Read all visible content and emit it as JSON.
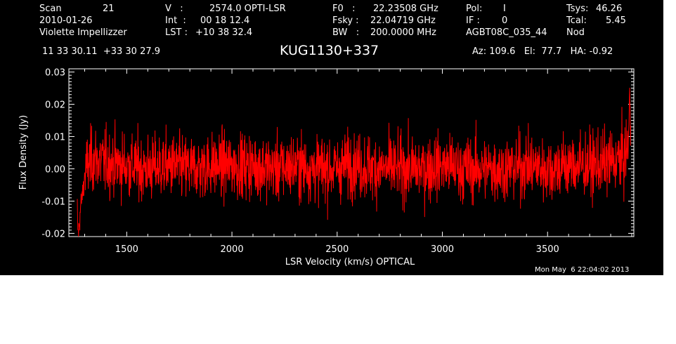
{
  "header": {
    "scan_label": "Scan",
    "scan_value": "21",
    "date": "2010-01-26",
    "observer": "Violette Impellizzer",
    "v_label": "V   :",
    "v_value": "2574.0 OPTI-LSR",
    "int_label": "Int  :",
    "int_value": "00 18 12.4",
    "lst_label": "LST :",
    "lst_value": "+10 38 32.4",
    "f0_label": "F0   :",
    "f0_value": "22.23508 GHz",
    "fsky_label": "Fsky :",
    "fsky_value": "22.04719 GHz",
    "bw_label": "BW   :",
    "bw_value": "200.0000 MHz",
    "pol_label": "Pol:",
    "pol_value": "I",
    "if_label": "IF :",
    "if_value": "0",
    "project": "AGBT08C_035_44",
    "tsys_label": "Tsys:",
    "tsys_value": "46.26",
    "tcal_label": "Tcal:",
    "tcal_value": "5.45",
    "mode": "Nod",
    "coords": "11 33 30.11  +33 30 27.9",
    "source": "KUG1130+337",
    "az_el_ha": "Az: 109.6   El:  77.7   HA: -0.92",
    "timestamp": "Mon May  6 22:04:02 2013"
  },
  "colors": {
    "background": "#000000",
    "axes": "#ffffff",
    "trace": "#ff0000"
  },
  "chart_data": {
    "type": "line",
    "title": "KUG1130+337",
    "xlabel": "LSR Velocity (km/s) OPTICAL",
    "ylabel": "Flux Density (Jy)",
    "xlim": [
      1225,
      3910
    ],
    "ylim": [
      -0.021,
      0.031
    ],
    "xticks": [
      1500,
      2000,
      2500,
      3000,
      3500
    ],
    "xtick_labels": [
      "1500",
      "2000",
      "2500",
      "3000",
      "3500"
    ],
    "yticks": [
      -0.02,
      -0.01,
      0.0,
      0.01,
      0.02,
      0.03
    ],
    "ytick_labels": [
      "-0.02",
      "-0.01",
      "0.00",
      "0.01",
      "0.02",
      "0.03"
    ],
    "grid": false,
    "series": [
      {
        "color": "#ff0000",
        "x_start": 1265,
        "x_end": 3895,
        "noise_rms_jy": 0.005,
        "values": [
          [
            1265,
            -0.012
          ],
          [
            1268,
            -0.02
          ],
          [
            1272,
            -0.019
          ],
          [
            1276,
            -0.016
          ],
          [
            1282,
            -0.011
          ],
          [
            1290,
            -0.008
          ],
          [
            1300,
            -0.002
          ],
          [
            1315,
            0.001
          ],
          [
            1340,
            0.003
          ],
          [
            1400,
            0.002
          ],
          [
            1500,
            0.001
          ],
          [
            1600,
            0.0
          ],
          [
            1700,
            0.001
          ],
          [
            1800,
            0.0
          ],
          [
            1900,
            0.001
          ],
          [
            2000,
            0.001
          ],
          [
            2100,
            0.001
          ],
          [
            2200,
            0.0
          ],
          [
            2300,
            0.001
          ],
          [
            2400,
            0.0
          ],
          [
            2500,
            0.0
          ],
          [
            2574,
            0.002
          ],
          [
            2600,
            0.001
          ],
          [
            2700,
            0.0
          ],
          [
            2800,
            0.0
          ],
          [
            2900,
            0.0
          ],
          [
            3000,
            0.001
          ],
          [
            3100,
            0.0
          ],
          [
            3200,
            0.0
          ],
          [
            3300,
            0.0
          ],
          [
            3400,
            0.001
          ],
          [
            3500,
            0.0
          ],
          [
            3600,
            0.001
          ],
          [
            3700,
            0.001
          ],
          [
            3800,
            0.002
          ],
          [
            3850,
            0.003
          ],
          [
            3870,
            0.004
          ],
          [
            3885,
            0.008
          ],
          [
            3890,
            0.026
          ],
          [
            3895,
            0.006
          ]
        ]
      }
    ]
  }
}
